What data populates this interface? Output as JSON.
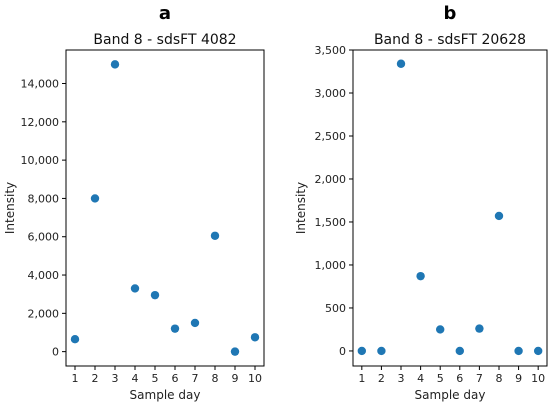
{
  "chart_data": [
    {
      "type": "scatter",
      "panel_label": "a",
      "title": "Band 8 - sdsFT 4082",
      "xlabel": "Sample day",
      "ylabel": "Intensity",
      "xlim": [
        0.55,
        10.45
      ],
      "ylim": [
        -750,
        15750
      ],
      "xticks": [
        1,
        2,
        3,
        4,
        5,
        6,
        7,
        8,
        9,
        10
      ],
      "yticks": [
        0,
        2000,
        4000,
        6000,
        8000,
        10000,
        12000,
        14000
      ],
      "ytick_labels": [
        "0",
        "2,000",
        "4,000",
        "6,000",
        "8,000",
        "10,000",
        "12,000",
        "14,000"
      ],
      "marker_color": "#1f77b4",
      "x": [
        1,
        2,
        3,
        4,
        5,
        6,
        7,
        8,
        9,
        10
      ],
      "y": [
        650,
        8000,
        15000,
        3300,
        2950,
        1200,
        1500,
        6050,
        0,
        750
      ]
    },
    {
      "type": "scatter",
      "panel_label": "b",
      "title": "Band 8 - sdsFT 20628",
      "xlabel": "Sample day",
      "ylabel": "Intensity",
      "xlim": [
        0.55,
        10.45
      ],
      "ylim": [
        -175,
        3500
      ],
      "xticks": [
        1,
        2,
        3,
        4,
        5,
        6,
        7,
        8,
        9,
        10
      ],
      "yticks": [
        0,
        500,
        1000,
        1500,
        2000,
        2500,
        3000,
        3500
      ],
      "ytick_labels": [
        "0",
        "500",
        "1,000",
        "1,500",
        "2,000",
        "2,500",
        "3,000",
        "3,500"
      ],
      "marker_color": "#1f77b4",
      "x": [
        1,
        2,
        3,
        4,
        5,
        6,
        7,
        8,
        9,
        10
      ],
      "y": [
        0,
        0,
        3340,
        870,
        250,
        0,
        260,
        1570,
        0,
        0
      ]
    }
  ]
}
